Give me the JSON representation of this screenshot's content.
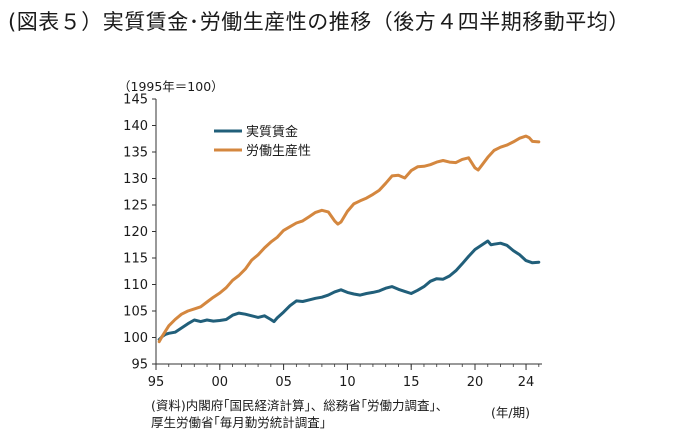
{
  "title": "(図表５）実質賃金･労働生産性の推移（後方４四半期移動平均）",
  "unit_note": "（1995年＝100）",
  "source_line1": "(資料)内閣府｢国民経済計算｣、総務省｢労働力調査｣、",
  "source_line2": "厚生労働省｢毎月勤労統計調査｣",
  "x_unit": "(年/期)",
  "chart_data": {
    "type": "line",
    "title": "(図表５）実質賃金･労働生産性の推移（後方４四半期移動平均）",
    "ylabel": "（1995年＝100）",
    "xlabel": "(年/期)",
    "ylim": [
      95,
      145
    ],
    "yticks": [
      95,
      100,
      105,
      110,
      115,
      120,
      125,
      130,
      135,
      140,
      145
    ],
    "xlim": [
      1995.0,
      2025.25
    ],
    "xticks": [
      {
        "value": 1995,
        "label": "95"
      },
      {
        "value": 2000,
        "label": "00"
      },
      {
        "value": 2005,
        "label": "05"
      },
      {
        "value": 2010,
        "label": "10"
      },
      {
        "value": 2015,
        "label": "15"
      },
      {
        "value": 2020,
        "label": "20"
      },
      {
        "value": 2024,
        "label": "24"
      }
    ],
    "grid": false,
    "legend_position": "upper-left",
    "series": [
      {
        "name": "実質賃金",
        "color": "#215f7a",
        "x": [
          1995.25,
          1995.5,
          1995.75,
          1996,
          1996.5,
          1997,
          1997.5,
          1998,
          1998.5,
          1999,
          1999.5,
          2000,
          2000.5,
          2001,
          2001.5,
          2002,
          2002.5,
          2003,
          2003.5,
          2004,
          2004.25,
          2004.5,
          2005,
          2005.5,
          2006,
          2006.5,
          2007,
          2007.5,
          2008,
          2008.5,
          2009,
          2009.5,
          2010,
          2010.5,
          2011,
          2011.5,
          2012,
          2012.5,
          2013,
          2013.5,
          2014,
          2014.5,
          2015,
          2015.5,
          2016,
          2016.5,
          2017,
          2017.5,
          2018,
          2018.5,
          2019,
          2019.5,
          2020,
          2020.5,
          2021,
          2021.25,
          2021.5,
          2022,
          2022.5,
          2023,
          2023.5,
          2024,
          2024.5,
          2025
        ],
        "values": [
          99.6,
          100.2,
          100.6,
          100.8,
          101.0,
          101.8,
          102.6,
          103.3,
          103.0,
          103.3,
          103.1,
          103.2,
          103.4,
          104.2,
          104.6,
          104.4,
          104.1,
          103.8,
          104.1,
          103.4,
          103.0,
          103.7,
          104.8,
          106.0,
          106.9,
          106.8,
          107.1,
          107.4,
          107.6,
          108.0,
          108.6,
          109.0,
          108.5,
          108.2,
          108.0,
          108.3,
          108.5,
          108.8,
          109.3,
          109.6,
          109.1,
          108.7,
          108.3,
          108.9,
          109.6,
          110.6,
          111.1,
          111.0,
          111.6,
          112.6,
          113.9,
          115.3,
          116.6,
          117.4,
          118.2,
          117.5,
          117.6,
          117.8,
          117.4,
          116.4,
          115.6,
          114.5,
          114.1,
          114.2
        ]
      },
      {
        "name": "労働生産性",
        "color": "#d4873f",
        "x": [
          1995.25,
          1995.5,
          1996,
          1996.5,
          1997,
          1997.5,
          1998,
          1998.5,
          1999,
          1999.5,
          2000,
          2000.5,
          2001,
          2001.5,
          2002,
          2002.5,
          2003,
          2003.5,
          2004,
          2004.5,
          2005,
          2005.5,
          2006,
          2006.5,
          2007,
          2007.5,
          2008,
          2008.5,
          2009,
          2009.25,
          2009.5,
          2010,
          2010.5,
          2011,
          2011.5,
          2012,
          2012.5,
          2013,
          2013.5,
          2014,
          2014.5,
          2015,
          2015.5,
          2016,
          2016.5,
          2017,
          2017.5,
          2018,
          2018.5,
          2019,
          2019.5,
          2020,
          2020.25,
          2020.5,
          2021,
          2021.5,
          2022,
          2022.5,
          2023,
          2023.5,
          2024,
          2024.25,
          2024.5,
          2025
        ],
        "values": [
          99.2,
          100.3,
          102.2,
          103.4,
          104.4,
          105.0,
          105.4,
          105.8,
          106.7,
          107.6,
          108.4,
          109.4,
          110.8,
          111.7,
          112.9,
          114.6,
          115.6,
          116.9,
          118.0,
          118.9,
          120.2,
          120.9,
          121.6,
          122.0,
          122.8,
          123.6,
          124.0,
          123.7,
          122.0,
          121.4,
          121.8,
          123.8,
          125.2,
          125.8,
          126.3,
          127.0,
          127.8,
          129.1,
          130.5,
          130.6,
          130.1,
          131.5,
          132.2,
          132.3,
          132.6,
          133.1,
          133.4,
          133.1,
          133.0,
          133.6,
          133.9,
          132.0,
          131.6,
          132.4,
          134.0,
          135.3,
          135.9,
          136.3,
          136.9,
          137.6,
          138.0,
          137.7,
          137.0,
          136.9
        ]
      }
    ]
  }
}
